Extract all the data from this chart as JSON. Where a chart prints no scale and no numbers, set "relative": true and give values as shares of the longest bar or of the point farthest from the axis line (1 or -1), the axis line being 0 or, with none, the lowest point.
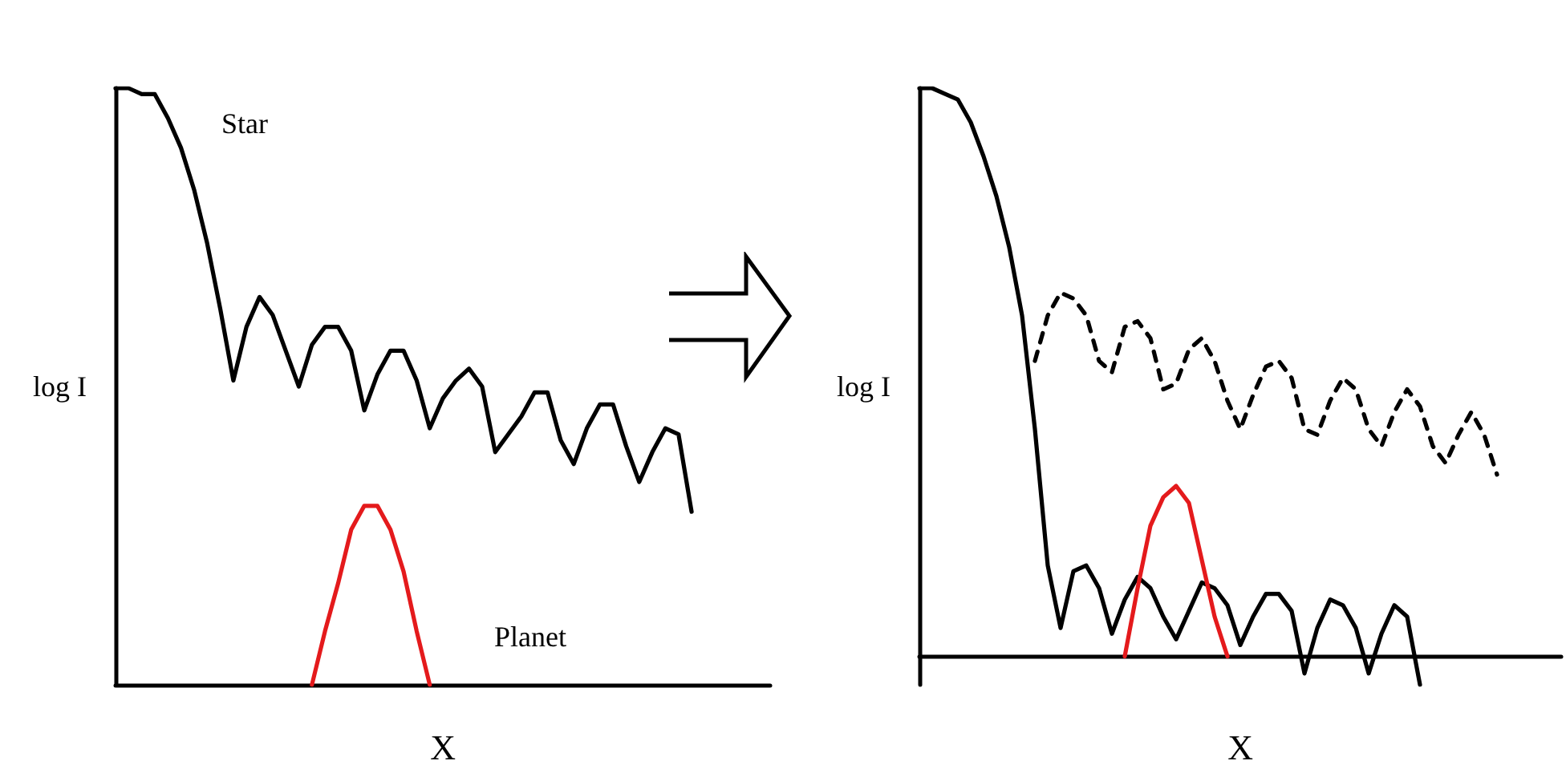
{
  "chart_data": [
    {
      "type": "line",
      "relative": true,
      "ylabel": "log I",
      "xlabel": "X",
      "grid": false,
      "marker": "none",
      "annotations": [
        "Star",
        "Planet"
      ],
      "categories": [
        null,
        null,
        null,
        null,
        null,
        null,
        null,
        null,
        null,
        null,
        null,
        null,
        null,
        null,
        null,
        null,
        null,
        null,
        null,
        null,
        null,
        null,
        null,
        null,
        null,
        null,
        null,
        null,
        null,
        null,
        null,
        null,
        null,
        null,
        null,
        null,
        null,
        null,
        null,
        null,
        null,
        null,
        null,
        null,
        null,
        null,
        null,
        null,
        null,
        null,
        null
      ],
      "series": [
        {
          "color": "#000000",
          "line_style": "solid",
          "values": [
            1,
            1,
            0.99,
            0.99,
            0.95,
            0.9,
            0.83,
            0.74,
            0.63,
            0.51,
            0.6,
            0.65,
            0.62,
            0.56,
            0.5,
            0.57,
            0.6,
            0.6,
            0.56,
            0.46,
            0.52,
            0.56,
            0.56,
            0.51,
            0.43,
            0.48,
            0.51,
            0.53,
            0.5,
            0.39,
            0.42,
            0.45,
            0.49,
            0.49,
            0.41,
            0.37,
            0.43,
            0.47,
            0.47,
            0.4,
            0.34,
            0.39,
            0.43,
            0.42,
            0.29,
            null,
            null,
            null,
            null,
            null,
            null
          ]
        },
        {
          "color": "#e41a1c",
          "line_style": "solid",
          "values": [
            null,
            null,
            null,
            null,
            null,
            null,
            null,
            null,
            null,
            null,
            null,
            null,
            null,
            null,
            null,
            0,
            0.09,
            0.17,
            0.26,
            0.3,
            0.3,
            0.26,
            0.19,
            0.09,
            0,
            null,
            null,
            null,
            null,
            null,
            null,
            null,
            null,
            null,
            null,
            null,
            null,
            null,
            null,
            null,
            null,
            null,
            null,
            null,
            null,
            null,
            null,
            null,
            null,
            null,
            null
          ]
        }
      ]
    },
    {
      "type": "line",
      "relative": true,
      "ylabel": "log I",
      "xlabel": "X",
      "grid": false,
      "marker": "none",
      "categories": [
        null,
        null,
        null,
        null,
        null,
        null,
        null,
        null,
        null,
        null,
        null,
        null,
        null,
        null,
        null,
        null,
        null,
        null,
        null,
        null,
        null,
        null,
        null,
        null,
        null,
        null,
        null,
        null,
        null,
        null,
        null,
        null,
        null,
        null,
        null,
        null,
        null,
        null,
        null,
        null,
        null,
        null,
        null,
        null,
        null,
        null,
        null,
        null,
        null,
        null,
        null
      ],
      "series": [
        {
          "color": "#000000",
          "line_style": "solid",
          "values": [
            1,
            1,
            0.99,
            0.98,
            0.94,
            0.88,
            0.81,
            0.72,
            0.6,
            0.4,
            0.16,
            0.05,
            0.15,
            0.16,
            0.12,
            0.04,
            0.1,
            0.14,
            0.12,
            0.07,
            0.03,
            0.08,
            0.13,
            0.12,
            0.09,
            0.02,
            0.07,
            0.11,
            0.11,
            0.08,
            -0.03,
            0.05,
            0.1,
            0.09,
            0.05,
            -0.03,
            0.04,
            0.09,
            0.07,
            -0.05,
            null,
            null,
            null,
            null,
            null,
            null,
            null,
            null,
            null,
            null,
            null
          ]
        },
        {
          "color": "#000000",
          "line_style": "dashed",
          "values": [
            null,
            null,
            null,
            null,
            null,
            null,
            null,
            null,
            null,
            0.52,
            0.6,
            0.64,
            0.63,
            0.6,
            0.52,
            0.5,
            0.58,
            0.59,
            0.56,
            0.47,
            0.48,
            0.54,
            0.56,
            0.52,
            0.45,
            0.4,
            0.46,
            0.51,
            0.52,
            0.49,
            0.4,
            0.39,
            0.45,
            0.49,
            0.47,
            0.4,
            0.37,
            0.43,
            0.47,
            0.44,
            0.37,
            0.34,
            0.39,
            0.43,
            0.39,
            0.32,
            null,
            null,
            null,
            null,
            null
          ]
        },
        {
          "color": "#e41a1c",
          "line_style": "solid",
          "values": [
            null,
            null,
            null,
            null,
            null,
            null,
            null,
            null,
            null,
            null,
            null,
            null,
            null,
            null,
            null,
            null,
            0,
            0.12,
            0.23,
            0.28,
            0.3,
            0.27,
            0.17,
            0.07,
            0,
            null,
            null,
            null,
            null,
            null,
            null,
            null,
            null,
            null,
            null,
            null,
            null,
            null,
            null,
            null,
            null,
            null,
            null,
            null,
            null,
            null,
            null,
            null,
            null,
            null,
            null
          ]
        }
      ]
    }
  ]
}
